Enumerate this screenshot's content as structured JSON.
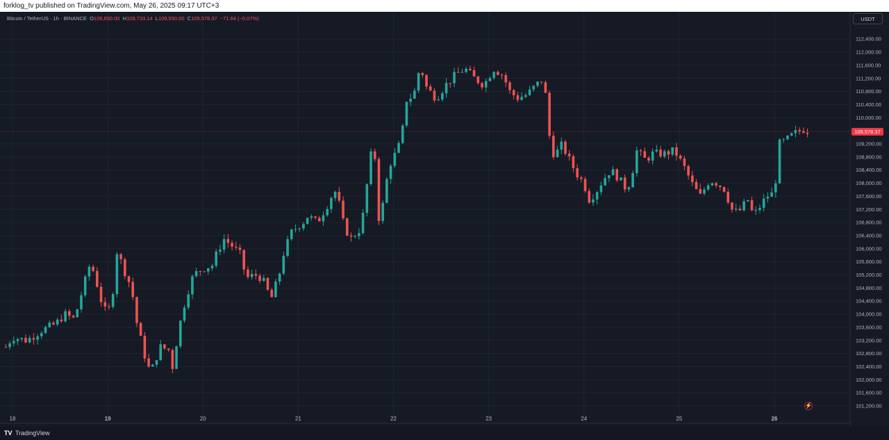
{
  "header": {
    "published_text": "forklog_tv published on TradingView.com, May 26, 2025 09:17 UTC+3"
  },
  "legend": {
    "symbol": "Bitcoin / TetherUS · 1h · BINANCE",
    "o_label": "O",
    "o_value": "109,650.00",
    "h_label": "H",
    "h_value": "109,733.14",
    "l_label": "L",
    "l_value": "109,550.00",
    "c_label": "C",
    "c_value": "109,578.37",
    "change": "−71.64 (−0.07%)"
  },
  "currency_button": "USDT",
  "last_price": {
    "label": "109,578.37",
    "value": 109578.37
  },
  "footer": {
    "brand": "TradingView"
  },
  "colors": {
    "up": "#26a69a",
    "down": "#ef5350",
    "background": "#161a25",
    "grid": "#1f2433"
  },
  "chart_data": {
    "type": "candlestick",
    "symbol": "BTCUSDT",
    "interval": "1h",
    "y_ticks": [
      {
        "value": 101200,
        "label": "101,200.00"
      },
      {
        "value": 101600,
        "label": "101,600.00"
      },
      {
        "value": 102000,
        "label": "102,000.00"
      },
      {
        "value": 102400,
        "label": "102,400.00"
      },
      {
        "value": 102800,
        "label": "102,800.00"
      },
      {
        "value": 103200,
        "label": "103,200.00"
      },
      {
        "value": 103600,
        "label": "103,600.00"
      },
      {
        "value": 104000,
        "label": "104,000.00"
      },
      {
        "value": 104400,
        "label": "104,400.00"
      },
      {
        "value": 104800,
        "label": "104,800.00"
      },
      {
        "value": 105200,
        "label": "105,200.00"
      },
      {
        "value": 105600,
        "label": "105,600.00"
      },
      {
        "value": 106000,
        "label": "106,000.00"
      },
      {
        "value": 106400,
        "label": "106,400.00"
      },
      {
        "value": 106800,
        "label": "106,800.00"
      },
      {
        "value": 107200,
        "label": "107,200.00"
      },
      {
        "value": 107600,
        "label": "107,600.00"
      },
      {
        "value": 108000,
        "label": "108,000.00"
      },
      {
        "value": 108400,
        "label": "108,400.00"
      },
      {
        "value": 108800,
        "label": "108,800.00"
      },
      {
        "value": 109200,
        "label": "109,200.00"
      },
      {
        "value": 110000,
        "label": "110,000.00"
      },
      {
        "value": 110400,
        "label": "110,400.00"
      },
      {
        "value": 110800,
        "label": "110,800.00"
      },
      {
        "value": 111200,
        "label": "111,200.00"
      },
      {
        "value": 111600,
        "label": "111,600.00"
      },
      {
        "value": 112000,
        "label": "112,000.00"
      },
      {
        "value": 112400,
        "label": "112,400.00"
      }
    ],
    "x_ticks": [
      {
        "day": 18,
        "label": "18"
      },
      {
        "day": 19,
        "label": "19"
      },
      {
        "day": 20,
        "label": "20"
      },
      {
        "day": 21,
        "label": "21"
      },
      {
        "day": 22,
        "label": "22"
      },
      {
        "day": 23,
        "label": "23"
      },
      {
        "day": 24,
        "label": "24"
      },
      {
        "day": 25,
        "label": "25"
      },
      {
        "day": 26,
        "label": "26"
      }
    ],
    "keypoints": [
      [
        17.93,
        103000
      ],
      [
        18.0,
        103300
      ],
      [
        18.15,
        103200
      ],
      [
        18.3,
        103500
      ],
      [
        18.45,
        103700
      ],
      [
        18.55,
        104000
      ],
      [
        18.65,
        103850
      ],
      [
        18.75,
        104900
      ],
      [
        18.82,
        105600
      ],
      [
        18.88,
        105000
      ],
      [
        18.95,
        104200
      ],
      [
        19.0,
        104000
      ],
      [
        19.05,
        104600
      ],
      [
        19.1,
        106000
      ],
      [
        19.15,
        105500
      ],
      [
        19.25,
        104800
      ],
      [
        19.3,
        103800
      ],
      [
        19.4,
        102600
      ],
      [
        19.45,
        102200
      ],
      [
        19.55,
        103000
      ],
      [
        19.65,
        102900
      ],
      [
        19.68,
        102400
      ],
      [
        19.75,
        103600
      ],
      [
        19.82,
        104500
      ],
      [
        19.9,
        105200
      ],
      [
        20.0,
        105400
      ],
      [
        20.1,
        105500
      ],
      [
        20.15,
        105900
      ],
      [
        20.22,
        106300
      ],
      [
        20.3,
        106100
      ],
      [
        20.4,
        105800
      ],
      [
        20.45,
        105100
      ],
      [
        20.55,
        105200
      ],
      [
        20.62,
        105100
      ],
      [
        20.68,
        104700
      ],
      [
        20.72,
        104500
      ],
      [
        20.8,
        105200
      ],
      [
        20.85,
        105900
      ],
      [
        20.93,
        106500
      ],
      [
        21.0,
        106700
      ],
      [
        21.05,
        106800
      ],
      [
        21.1,
        107000
      ],
      [
        21.2,
        106800
      ],
      [
        21.3,
        107300
      ],
      [
        21.38,
        107800
      ],
      [
        21.42,
        107500
      ],
      [
        21.48,
        106700
      ],
      [
        21.55,
        106300
      ],
      [
        21.65,
        106600
      ],
      [
        21.7,
        107300
      ],
      [
        21.75,
        108800
      ],
      [
        21.8,
        109000
      ],
      [
        21.85,
        106800
      ],
      [
        21.9,
        107500
      ],
      [
        21.95,
        108500
      ],
      [
        22.02,
        108900
      ],
      [
        22.08,
        109300
      ],
      [
        22.15,
        110800
      ],
      [
        22.2,
        110500
      ],
      [
        22.28,
        111600
      ],
      [
        22.35,
        110900
      ],
      [
        22.45,
        110600
      ],
      [
        22.55,
        111000
      ],
      [
        22.65,
        111300
      ],
      [
        22.75,
        111500
      ],
      [
        22.85,
        111200
      ],
      [
        22.95,
        111000
      ],
      [
        23.05,
        111500
      ],
      [
        23.15,
        111300
      ],
      [
        23.22,
        110800
      ],
      [
        23.3,
        110600
      ],
      [
        23.4,
        110700
      ],
      [
        23.5,
        111000
      ],
      [
        23.58,
        111200
      ],
      [
        23.62,
        110000
      ],
      [
        23.65,
        109100
      ],
      [
        23.7,
        108800
      ],
      [
        23.75,
        109200
      ],
      [
        23.8,
        109000
      ],
      [
        23.85,
        108700
      ],
      [
        23.92,
        108300
      ],
      [
        24.0,
        108000
      ],
      [
        24.05,
        107500
      ],
      [
        24.12,
        107700
      ],
      [
        24.2,
        108100
      ],
      [
        24.28,
        108400
      ],
      [
        24.35,
        108200
      ],
      [
        24.45,
        107800
      ],
      [
        24.5,
        108200
      ],
      [
        24.55,
        109000
      ],
      [
        24.65,
        108700
      ],
      [
        24.72,
        108900
      ],
      [
        24.85,
        108900
      ],
      [
        24.95,
        109000
      ],
      [
        25.05,
        108500
      ],
      [
        25.15,
        107900
      ],
      [
        25.22,
        107600
      ],
      [
        25.32,
        108100
      ],
      [
        25.4,
        108000
      ],
      [
        25.48,
        107800
      ],
      [
        25.55,
        107200
      ],
      [
        25.62,
        107100
      ],
      [
        25.72,
        107500
      ],
      [
        25.78,
        107000
      ],
      [
        25.85,
        107300
      ],
      [
        25.92,
        107600
      ],
      [
        26.0,
        107700
      ],
      [
        26.05,
        109200
      ],
      [
        26.12,
        109300
      ],
      [
        26.2,
        109500
      ],
      [
        26.3,
        109650
      ],
      [
        26.37,
        109578
      ]
    ]
  }
}
